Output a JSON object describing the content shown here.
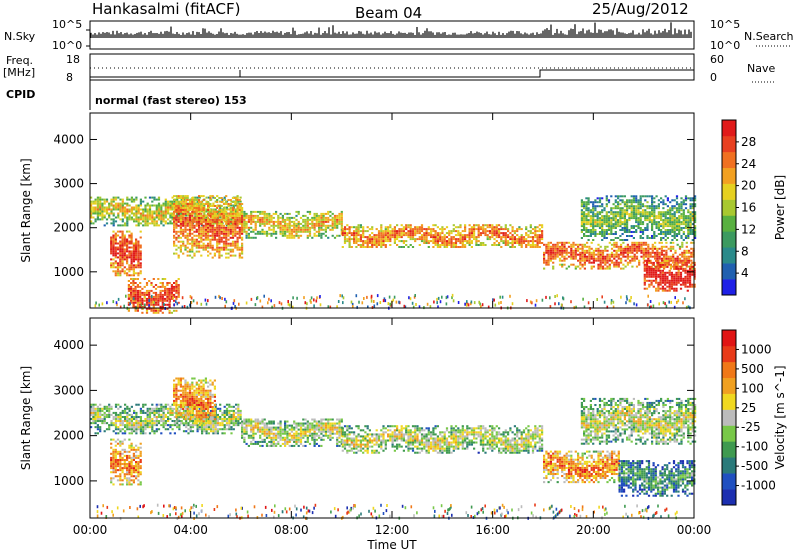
{
  "header": {
    "station": "Hankasalmi (fitACF)",
    "beam": "Beam 04",
    "date": "25/Aug/2012"
  },
  "top_panels": {
    "nsky_label": "N.Sky",
    "nsearch_label": "N.Search",
    "freq_label": "Freq.",
    "freq_unit": "[MHz]",
    "nave_label": "Nave",
    "cpid_label": "CPID",
    "cpid_text": "normal (fast stereo) 153",
    "noise_ticks": [
      "10^5",
      "10^0"
    ],
    "noise_ticks_right": [
      "10^5",
      "10^0"
    ],
    "freq_ticks": [
      "18",
      "8"
    ],
    "nave_ticks": [
      "60",
      "0"
    ]
  },
  "chart_data": [
    {
      "type": "heatmap",
      "panel": "power",
      "ylabel": "Slant Range [km]",
      "xlabel": "",
      "x_ticks": [
        "00:00",
        "04:00",
        "08:00",
        "12:00",
        "16:00",
        "20:00",
        "00:00"
      ],
      "xlim_hours": [
        0,
        24
      ],
      "ylim_km": [
        180,
        4600
      ],
      "y_ticks": [
        1000,
        2000,
        3000,
        4000
      ],
      "colorbar": {
        "label": "Power [dB]",
        "ticks": [
          "4",
          "8",
          "12",
          "16",
          "20",
          "24",
          "28"
        ],
        "colors": [
          "#1f20e6",
          "#2060b0",
          "#2a8a8a",
          "#3c9a60",
          "#58b040",
          "#a8c830",
          "#e6d020",
          "#f2a020",
          "#f07020",
          "#e84020",
          "#e01a1a"
        ]
      },
      "bands": [
        {
          "t0": 0.0,
          "t1": 6.0,
          "r": 2350,
          "w": 320,
          "level": 0.55
        },
        {
          "t0": 6.0,
          "t1": 10.0,
          "r": 2050,
          "w": 300,
          "level": 0.6
        },
        {
          "t0": 10.0,
          "t1": 18.0,
          "r": 1800,
          "w": 260,
          "level": 0.72
        },
        {
          "t0": 18.0,
          "t1": 24.0,
          "r": 1350,
          "w": 300,
          "level": 0.8
        },
        {
          "t0": 19.5,
          "t1": 24.0,
          "r": 2200,
          "w": 500,
          "level": 0.4
        },
        {
          "t0": 0.8,
          "t1": 2.0,
          "r": 1400,
          "w": 500,
          "level": 0.85
        },
        {
          "t0": 3.3,
          "t1": 6.0,
          "r": 2000,
          "w": 700,
          "level": 0.75
        },
        {
          "t0": 22.0,
          "t1": 24.0,
          "r": 900,
          "w": 350,
          "level": 0.95
        },
        {
          "t0": 1.5,
          "t1": 3.5,
          "r": 450,
          "w": 400,
          "level": 0.85
        }
      ]
    },
    {
      "type": "heatmap",
      "panel": "velocity",
      "ylabel": "Slant Range [km]",
      "xlabel": "Time UT",
      "x_ticks": [
        "00:00",
        "04:00",
        "08:00",
        "12:00",
        "16:00",
        "20:00",
        "00:00"
      ],
      "xlim_hours": [
        0,
        24
      ],
      "ylim_km": [
        180,
        4600
      ],
      "y_ticks": [
        1000,
        2000,
        3000,
        4000
      ],
      "colorbar": {
        "label": "Velocity [m s^-1]",
        "ticks": [
          "1000",
          "500",
          "100",
          "25",
          "-25",
          "-100",
          "-500",
          "-1000"
        ],
        "colors": [
          "#1c2fb0",
          "#2050c0",
          "#2a7a7a",
          "#3f9a50",
          "#78c848",
          "#bcbcbc",
          "#f0d820",
          "#f0a020",
          "#f07818",
          "#e83a18",
          "#e01414"
        ]
      },
      "bands": [
        {
          "t0": 0.0,
          "t1": 6.0,
          "r": 2350,
          "w": 320,
          "level": 0.45
        },
        {
          "t0": 6.0,
          "t1": 10.0,
          "r": 2050,
          "w": 300,
          "level": 0.5
        },
        {
          "t0": 10.0,
          "t1": 18.0,
          "r": 1900,
          "w": 300,
          "level": 0.5
        },
        {
          "t0": 18.0,
          "t1": 21.0,
          "r": 1300,
          "w": 350,
          "level": 0.72
        },
        {
          "t0": 21.0,
          "t1": 24.0,
          "r": 1050,
          "w": 400,
          "level": 0.28
        },
        {
          "t0": 0.8,
          "t1": 2.0,
          "r": 1400,
          "w": 500,
          "level": 0.7
        },
        {
          "t0": 3.3,
          "t1": 5.0,
          "r": 2750,
          "w": 500,
          "level": 0.72
        },
        {
          "t0": 19.5,
          "t1": 24.0,
          "r": 2300,
          "w": 500,
          "level": 0.48
        }
      ]
    }
  ]
}
